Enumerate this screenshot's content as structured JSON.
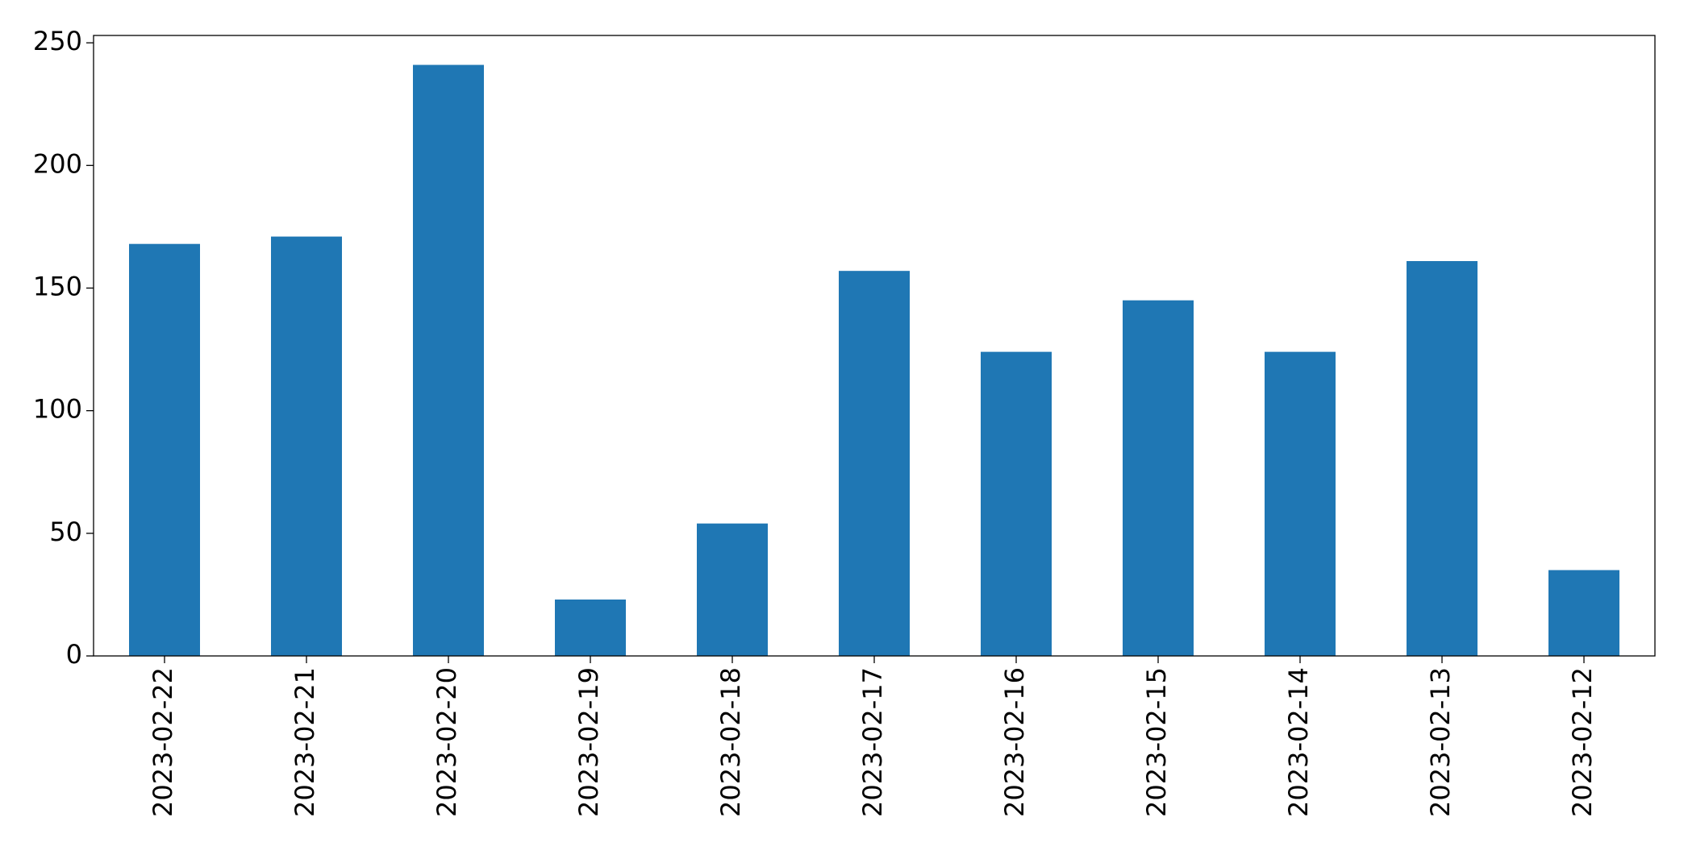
{
  "chart_data": {
    "type": "bar",
    "categories": [
      "2023-02-22",
      "2023-02-21",
      "2023-02-20",
      "2023-02-19",
      "2023-02-18",
      "2023-02-17",
      "2023-02-16",
      "2023-02-15",
      "2023-02-14",
      "2023-02-13",
      "2023-02-12"
    ],
    "values": [
      168,
      171,
      241,
      23,
      54,
      157,
      124,
      145,
      124,
      161,
      35
    ],
    "color": "#1f77b4",
    "ylim": [
      0,
      253
    ],
    "yticks": [
      0,
      50,
      100,
      150,
      200,
      250
    ],
    "grid": false
  }
}
